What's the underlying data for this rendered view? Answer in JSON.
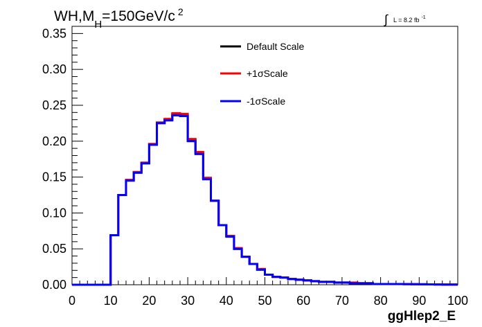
{
  "chart_data": {
    "type": "step-histogram",
    "title_main": "WH,M",
    "title_sub": "H",
    "title_rest": "=150GeV/c",
    "title_sup": "2",
    "lumi_integral": "∫",
    "lumi_text": "L = 8.2 fb",
    "lumi_sup": "-1",
    "xlabel": "ggHlep2_E",
    "xlim": [
      0,
      100
    ],
    "ylim": [
      0,
      0.36
    ],
    "xticks": [
      "0",
      "10",
      "20",
      "30",
      "40",
      "50",
      "60",
      "70",
      "80",
      "90",
      "100"
    ],
    "yticks": [
      "0.00",
      "0.05",
      "0.10",
      "0.15",
      "0.20",
      "0.25",
      "0.30",
      "0.35"
    ],
    "bin_edges": [
      0,
      2,
      4,
      6,
      8,
      10,
      12,
      14,
      16,
      18,
      20,
      22,
      24,
      26,
      28,
      30,
      32,
      34,
      36,
      38,
      40,
      42,
      44,
      46,
      48,
      50,
      52,
      54,
      56,
      58,
      60,
      62,
      64,
      66,
      68,
      70,
      72,
      74,
      76,
      78,
      80,
      82,
      84,
      86,
      88,
      90,
      92,
      94,
      96,
      98,
      100
    ],
    "legend_position": "top-center",
    "series": [
      {
        "name": "Default Scale",
        "color": "#000000",
        "values": [
          0,
          0,
          0,
          0,
          0,
          0.069,
          0.125,
          0.146,
          0.157,
          0.17,
          0.196,
          0.226,
          0.23,
          0.238,
          0.237,
          0.202,
          0.184,
          0.148,
          0.117,
          0.083,
          0.068,
          0.05,
          0.039,
          0.029,
          0.021,
          0.014,
          0.011,
          0.01,
          0.008,
          0.007,
          0.006,
          0.005,
          0.004,
          0.004,
          0.003,
          0.003,
          0.002,
          0.002,
          0.002,
          0.001,
          0.001,
          0.001,
          0.001,
          0.0008,
          0.0007,
          0.0006,
          0.0005,
          0.0004,
          0.0003,
          0.0002
        ]
      },
      {
        "name": "+1σScale",
        "color": "#ff0000",
        "values": [
          0,
          0,
          0,
          0,
          0,
          0.069,
          0.125,
          0.146,
          0.157,
          0.17,
          0.196,
          0.226,
          0.231,
          0.239,
          0.238,
          0.203,
          0.185,
          0.149,
          0.117,
          0.083,
          0.068,
          0.051,
          0.039,
          0.029,
          0.022,
          0.014,
          0.011,
          0.01,
          0.008,
          0.007,
          0.006,
          0.005,
          0.004,
          0.004,
          0.003,
          0.003,
          0.003,
          0.002,
          0.002,
          0.001,
          0.001,
          0.001,
          0.001,
          0.0008,
          0.0007,
          0.0006,
          0.0005,
          0.0004,
          0.0003,
          0.0002
        ]
      },
      {
        "name": "-1σScale",
        "color": "#0000ff",
        "values": [
          0,
          0,
          0,
          0,
          0,
          0.069,
          0.125,
          0.145,
          0.156,
          0.169,
          0.195,
          0.225,
          0.229,
          0.236,
          0.235,
          0.2,
          0.182,
          0.147,
          0.117,
          0.083,
          0.067,
          0.05,
          0.039,
          0.029,
          0.021,
          0.014,
          0.011,
          0.01,
          0.008,
          0.007,
          0.006,
          0.005,
          0.004,
          0.004,
          0.003,
          0.003,
          0.002,
          0.002,
          0.002,
          0.001,
          0.001,
          0.001,
          0.001,
          0.0008,
          0.0007,
          0.0006,
          0.0005,
          0.0004,
          0.0003,
          0.0002
        ]
      }
    ]
  }
}
